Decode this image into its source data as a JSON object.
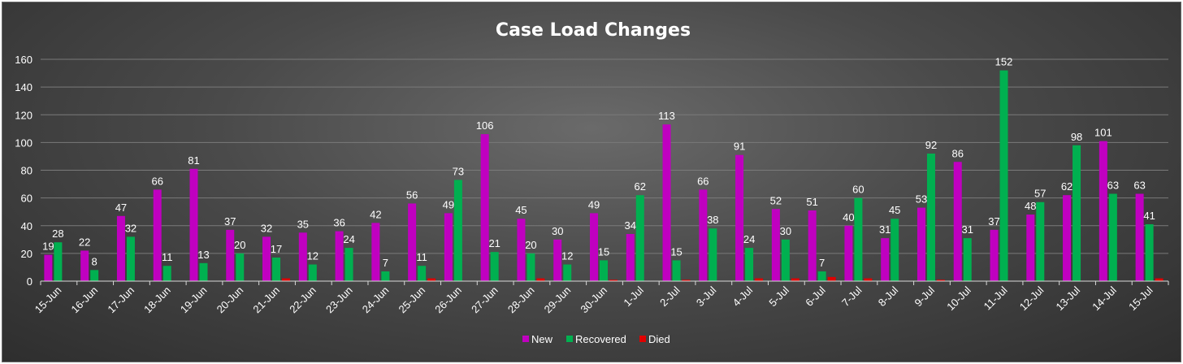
{
  "chart_data": {
    "type": "bar",
    "title": "Case Load Changes",
    "xlabel": "",
    "ylabel": "",
    "ylim": [
      0,
      160
    ],
    "yticks": [
      0,
      20,
      40,
      60,
      80,
      100,
      120,
      140,
      160
    ],
    "grid": true,
    "legend_position": "bottom",
    "categories": [
      "15-Jun",
      "16-Jun",
      "17-Jun",
      "18-Jun",
      "19-Jun",
      "20-Jun",
      "21-Jun",
      "22-Jun",
      "23-Jun",
      "24-Jun",
      "25-Jun",
      "26-Jun",
      "27-Jun",
      "28-Jun",
      "29-Jun",
      "30-Jun",
      "1-Jul",
      "2-Jul",
      "3-Jul",
      "4-Jul",
      "5-Jul",
      "6-Jul",
      "7-Jul",
      "8-Jul",
      "9-Jul",
      "10-Jul",
      "11-Jul",
      "12-Jul",
      "13-Jul",
      "14-Jul",
      "15-Jul"
    ],
    "series": [
      {
        "name": "New",
        "color": "#c000c0",
        "values": [
          19,
          22,
          47,
          66,
          81,
          37,
          32,
          35,
          36,
          42,
          56,
          49,
          106,
          45,
          30,
          49,
          34,
          113,
          66,
          91,
          52,
          51,
          40,
          31,
          53,
          86,
          37,
          48,
          62,
          101,
          63
        ],
        "labels": [
          "19",
          "22",
          "47",
          "66",
          "81",
          "37",
          "32",
          "35",
          "36",
          "42",
          "56",
          "49",
          "106",
          "45",
          "30",
          "49",
          "34",
          "113",
          "66",
          "91",
          "52",
          "51",
          "40",
          "31",
          "53",
          "86",
          "37",
          "48",
          "62",
          "101",
          "63"
        ]
      },
      {
        "name": "Recovered",
        "color": "#00b050",
        "values": [
          28,
          8,
          32,
          11,
          13,
          20,
          17,
          12,
          24,
          7,
          11,
          73,
          21,
          20,
          12,
          15,
          62,
          15,
          38,
          24,
          30,
          7,
          60,
          45,
          92,
          31,
          152,
          57,
          98,
          63,
          41
        ],
        "labels": [
          "28",
          "8",
          "32",
          "11",
          "13",
          "20",
          "17",
          "12",
          "24",
          "7",
          "11",
          "73",
          "21",
          "20",
          "12",
          "15",
          "62",
          "15",
          "38",
          "24",
          "30",
          "7",
          "60",
          "45",
          "92",
          "31",
          "152",
          "57",
          "98",
          "63",
          "41"
        ]
      },
      {
        "name": "Died",
        "color": "#e00000",
        "values": [
          0,
          0,
          0,
          0,
          0,
          0,
          2,
          0,
          0,
          0,
          2,
          0,
          0,
          2,
          0,
          1,
          0,
          1,
          0,
          2,
          2,
          3,
          2,
          0,
          1,
          0,
          0,
          0,
          0,
          0,
          2
        ]
      }
    ]
  }
}
